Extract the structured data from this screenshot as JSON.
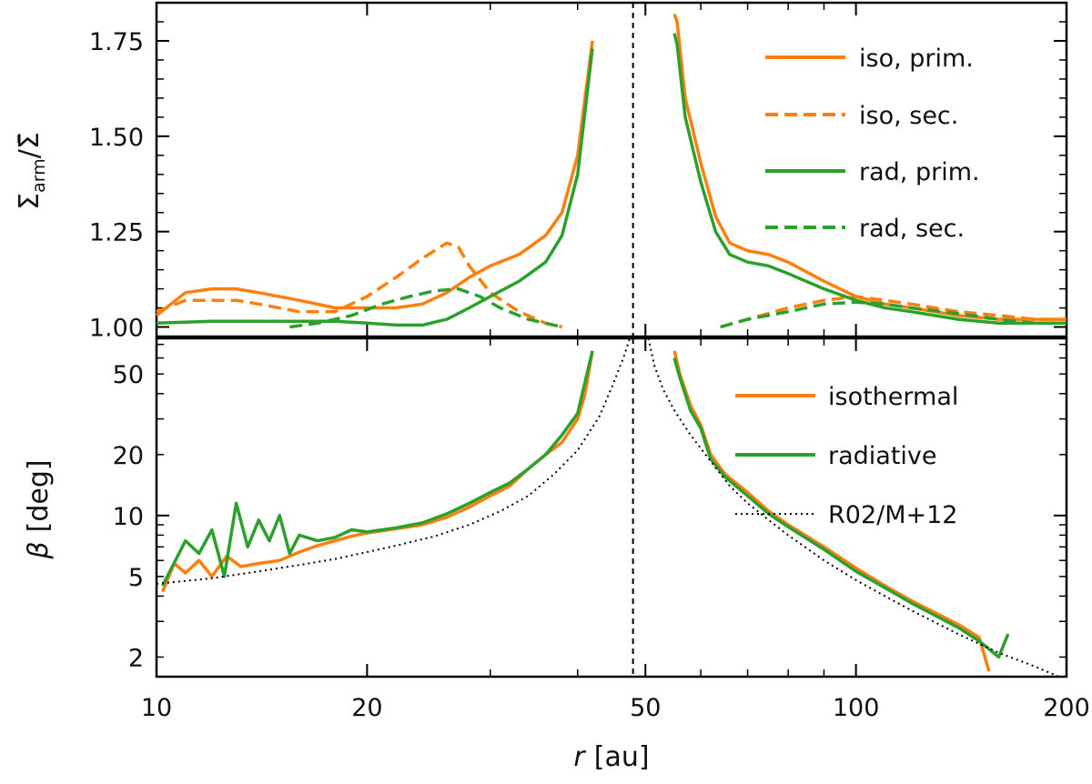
{
  "chart_data": [
    {
      "panel": "top",
      "type": "line",
      "xscale": "log",
      "xlim": [
        10,
        200
      ],
      "ylim": [
        0.975,
        1.85
      ],
      "ylabel_main": "Σ",
      "ylabel_sub": "arm",
      "ylabel_tail": "/Σ̄",
      "yticks": [
        1.0,
        1.25,
        1.5,
        1.75
      ],
      "ytick_labels": [
        "1.00",
        "1.25",
        "1.50",
        "1.75"
      ],
      "vline_x": 48,
      "legend": "top-right",
      "series": [
        {
          "name": "iso, prim.",
          "color": "#ff7f0e",
          "dash": "solid",
          "left": {
            "x": [
              10,
              11,
              12,
              13,
              14,
              16,
              18,
              20,
              22,
              24,
              26,
              28,
              30,
              33,
              36,
              38,
              40,
              42
            ],
            "y": [
              1.03,
              1.09,
              1.1,
              1.1,
              1.09,
              1.07,
              1.05,
              1.05,
              1.05,
              1.06,
              1.09,
              1.13,
              1.16,
              1.19,
              1.24,
              1.3,
              1.45,
              1.75
            ]
          },
          "right": {
            "x": [
              55,
              55.5,
              57,
              60,
              63,
              66,
              70,
              75,
              80,
              90,
              100,
              110,
              120,
              140,
              160,
              180,
              200
            ],
            "y": [
              1.82,
              1.8,
              1.6,
              1.43,
              1.29,
              1.22,
              1.2,
              1.19,
              1.17,
              1.12,
              1.08,
              1.06,
              1.05,
              1.03,
              1.02,
              1.02,
              1.02
            ]
          }
        },
        {
          "name": "iso, sec.",
          "color": "#ff7f0e",
          "dash": "dashed",
          "left": {
            "x": [
              10,
              11,
              12,
              13,
              14,
              16,
              18,
              20,
              22,
              24,
              26,
              27,
              28,
              30,
              33,
              36,
              38
            ],
            "y": [
              1.04,
              1.07,
              1.07,
              1.07,
              1.06,
              1.04,
              1.04,
              1.08,
              1.13,
              1.18,
              1.22,
              1.21,
              1.16,
              1.09,
              1.04,
              1.01,
              1.0
            ]
          },
          "right": {
            "x": [
              64,
              70,
              80,
              90,
              100,
              110,
              120,
              140,
              160,
              180,
              200
            ],
            "y": [
              1.0,
              1.02,
              1.05,
              1.07,
              1.08,
              1.07,
              1.06,
              1.04,
              1.03,
              1.02,
              1.02
            ]
          }
        },
        {
          "name": "rad, prim.",
          "color": "#2ca02c",
          "dash": "solid",
          "left": {
            "x": [
              10,
              12,
              14,
              16,
              18,
              20,
              22,
              24,
              26,
              28,
              30,
              33,
              36,
              38,
              40,
              42
            ],
            "y": [
              1.01,
              1.015,
              1.015,
              1.015,
              1.015,
              1.01,
              1.005,
              1.005,
              1.02,
              1.05,
              1.08,
              1.12,
              1.17,
              1.24,
              1.4,
              1.73
            ]
          },
          "right": {
            "x": [
              55,
              55.5,
              57,
              60,
              63,
              66,
              70,
              75,
              80,
              90,
              100,
              110,
              120,
              140,
              160,
              180,
              200
            ],
            "y": [
              1.77,
              1.74,
              1.55,
              1.38,
              1.25,
              1.19,
              1.17,
              1.16,
              1.14,
              1.1,
              1.07,
              1.05,
              1.04,
              1.02,
              1.01,
              1.01,
              1.01
            ]
          }
        },
        {
          "name": "rad, sec.",
          "color": "#2ca02c",
          "dash": "dashed",
          "left": {
            "x": [
              15.5,
              17,
              19,
              21,
              23,
              25,
              27,
              29,
              31,
              34,
              37,
              38
            ],
            "y": [
              1.0,
              1.01,
              1.03,
              1.06,
              1.08,
              1.095,
              1.1,
              1.08,
              1.05,
              1.02,
              1.005,
              1.0
            ]
          },
          "right": {
            "x": [
              64,
              70,
              80,
              90,
              100,
              110,
              120,
              140,
              160,
              180,
              200
            ],
            "y": [
              1.0,
              1.02,
              1.04,
              1.06,
              1.065,
              1.06,
              1.05,
              1.035,
              1.02,
              1.01,
              1.01
            ]
          }
        }
      ]
    },
    {
      "panel": "bottom",
      "type": "line",
      "xscale": "log",
      "yscale": "log",
      "xlim": [
        10,
        200
      ],
      "ylim": [
        1.6,
        75
      ],
      "xlabel_var": "r",
      "xlabel_unit": "[au]",
      "ylabel_var": "β",
      "ylabel_unit": "[deg]",
      "xticks": [
        10,
        20,
        50,
        100,
        200
      ],
      "xtick_labels": [
        "10",
        "20",
        "50",
        "100",
        "200"
      ],
      "yticks": [
        2,
        5,
        10,
        20,
        50
      ],
      "ytick_labels": [
        "2",
        "5",
        "10",
        "20",
        "50"
      ],
      "vline_x": 48,
      "legend": "top-right",
      "series": [
        {
          "name": "isothermal",
          "color": "#ff7f0e",
          "dash": "solid",
          "left": {
            "x": [
              10.2,
              10.6,
              11,
              11.5,
              12,
              12.6,
              13.2,
              14,
              15,
              16,
              17,
              18,
              19,
              20,
              22,
              24,
              26,
              28,
              30,
              32,
              34,
              36,
              38,
              40,
              41,
              42
            ],
            "y": [
              4.2,
              5.8,
              5.2,
              6.0,
              5.0,
              6.3,
              5.6,
              5.8,
              6.0,
              6.6,
              7.1,
              7.5,
              7.9,
              8.2,
              8.6,
              9.0,
              9.8,
              11.0,
              12.5,
              14.0,
              17.0,
              20.0,
              23.0,
              30.0,
              40.0,
              65.0
            ]
          },
          "right": {
            "x": [
              55,
              56,
              58,
              60,
              62,
              65,
              70,
              75,
              80,
              90,
              100,
              110,
              120,
              130,
              140,
              150,
              155
            ],
            "y": [
              65.0,
              50.0,
              35.0,
              28.0,
              20.0,
              16.0,
              13.0,
              10.5,
              9.0,
              7.0,
              5.5,
              4.5,
              3.8,
              3.3,
              2.9,
              2.5,
              1.7
            ]
          }
        },
        {
          "name": "radiative",
          "color": "#2ca02c",
          "dash": "solid",
          "left": {
            "x": [
              10.2,
              11,
              11.5,
              12,
              12.5,
              13,
              13.5,
              14,
              14.5,
              15,
              15.5,
              16,
              17,
              18,
              19,
              20,
              22,
              24,
              26,
              28,
              30,
              32,
              34,
              36,
              38,
              40,
              42
            ],
            "y": [
              4.5,
              7.5,
              6.5,
              8.5,
              5.0,
              11.5,
              7.0,
              9.5,
              7.5,
              10.0,
              6.5,
              8.0,
              7.5,
              7.8,
              8.5,
              8.3,
              8.7,
              9.2,
              10.2,
              11.5,
              13.0,
              14.5,
              17.0,
              20.0,
              25.0,
              32.0,
              65.0
            ]
          },
          "right": {
            "x": [
              55,
              56,
              58,
              60,
              62,
              65,
              70,
              75,
              80,
              90,
              100,
              110,
              120,
              130,
              140,
              150,
              160,
              165
            ],
            "y": [
              60.0,
              48.0,
              33.0,
              27.0,
              19.0,
              15.5,
              12.5,
              10.2,
              8.8,
              6.8,
              5.3,
              4.4,
              3.7,
              3.2,
              2.8,
              2.4,
              2.0,
              2.6
            ]
          }
        },
        {
          "name": "R02/M+12",
          "color": "#000000",
          "dash": "dotted",
          "left": {
            "x": [
              10,
              12,
              14,
              16,
              18,
              20,
              22,
              25,
              28,
              31,
              34,
              37,
              40,
              43,
              45,
              46.5,
              47.5
            ],
            "y": [
              4.6,
              4.9,
              5.3,
              5.7,
              6.1,
              6.6,
              7.1,
              7.9,
              9.0,
              10.5,
              12.5,
              16.0,
              21.0,
              31.0,
              45.0,
              60.0,
              75.0
            ]
          },
          "right": {
            "x": [
              50.5,
              51.5,
              53,
              55,
              58,
              62,
              66,
              70,
              75,
              80,
              90,
              100,
              110,
              120,
              140,
              160,
              180,
              195
            ],
            "y": [
              75.0,
              55.0,
              42.0,
              33.0,
              25.0,
              18.5,
              14.0,
              11.5,
              9.5,
              8.0,
              6.0,
              4.8,
              4.0,
              3.4,
              2.6,
              2.1,
              1.8,
              1.6
            ]
          }
        }
      ]
    }
  ]
}
